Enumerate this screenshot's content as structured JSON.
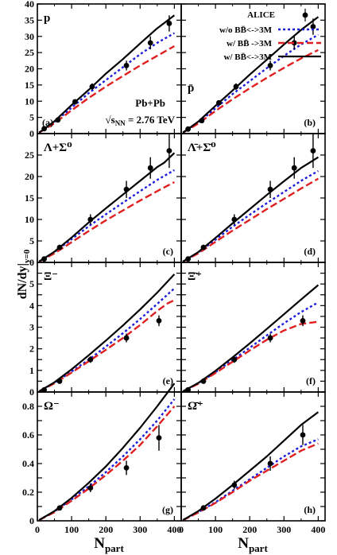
{
  "figure": {
    "y_label_main": "dN/dy|",
    "y_label_sub": "y=0",
    "x_label_main": "N",
    "x_label_sub": "part",
    "system_label": "Pb+Pb",
    "energy_prefix": "√s",
    "energy_sub": "NN",
    "energy_suffix": " = 2.76 TeV"
  },
  "legend": {
    "placement": "top-right of panel (b)",
    "entries": [
      {
        "label": "ALICE",
        "style": "marker"
      },
      {
        "label": "w/o BB̄<->3M",
        "style": "blue-dotted"
      },
      {
        "label": "w/  BB̄ ->3M",
        "style": "red-dashed"
      },
      {
        "label": "w/  BB̄<->3M",
        "style": "black-solid"
      }
    ]
  },
  "colors": {
    "blue": "#1c1cdd",
    "red": "#e02020",
    "black": "#000000"
  },
  "chart_data": [
    {
      "type": "line",
      "panel": "(a)",
      "particle": "p",
      "xlim": [
        0,
        420
      ],
      "ylim": [
        0,
        40
      ],
      "x_ticks": [
        0,
        100,
        200,
        300,
        400
      ],
      "y_ticks": [
        0,
        5,
        10,
        15,
        20,
        25,
        30,
        35,
        40
      ],
      "x_ticklabels": [
        "0",
        "100",
        "200",
        "300",
        "400"
      ],
      "y_ticklabels": [
        "0",
        "5",
        "10",
        "15",
        "20",
        "25",
        "30",
        "35",
        "40"
      ],
      "alice": {
        "x": [
          20,
          60,
          110,
          160,
          260,
          330,
          385
        ],
        "y": [
          1.5,
          4.2,
          9.8,
          14.5,
          21,
          28,
          34
        ],
        "err": [
          0.3,
          0.5,
          0.8,
          1.0,
          1.5,
          2.0,
          2.5
        ]
      },
      "series": [
        {
          "style": "blue-dotted",
          "x": [
            5,
            50,
            100,
            150,
            200,
            250,
            300,
            350,
            400
          ],
          "y": [
            0.3,
            3.5,
            8,
            12.5,
            16.5,
            20.5,
            24.5,
            28,
            31
          ]
        },
        {
          "style": "red-dashed",
          "x": [
            5,
            50,
            100,
            150,
            200,
            250,
            300,
            350,
            400
          ],
          "y": [
            0.3,
            3.2,
            7.2,
            11,
            14.5,
            17.8,
            21,
            24,
            27
          ]
        },
        {
          "style": "black-solid",
          "x": [
            5,
            50,
            100,
            150,
            200,
            250,
            300,
            350,
            400
          ],
          "y": [
            0.3,
            3.8,
            8.8,
            13.5,
            18.5,
            23,
            27.8,
            32.5,
            36.5
          ]
        }
      ]
    },
    {
      "type": "line",
      "panel": "(b)",
      "particle": "p̄",
      "xlim": [
        0,
        420
      ],
      "ylim": [
        0,
        40
      ],
      "x_ticks": [
        0,
        100,
        200,
        300,
        400
      ],
      "y_ticks": [
        0,
        5,
        10,
        15,
        20,
        25,
        30,
        35,
        40
      ],
      "x_ticklabels": [
        "0",
        "100",
        "200",
        "300",
        "400"
      ],
      "y_ticklabels": [],
      "alice": {
        "x": [
          20,
          60,
          110,
          160,
          260,
          330,
          385
        ],
        "y": [
          1.4,
          4.0,
          9.5,
          14.5,
          21,
          28,
          33
        ],
        "err": [
          0.3,
          0.5,
          0.8,
          1.0,
          1.5,
          2.0,
          2.5
        ]
      },
      "series": [
        {
          "style": "blue-dotted",
          "x": [
            5,
            50,
            100,
            150,
            200,
            250,
            300,
            350,
            400
          ],
          "y": [
            0.3,
            3.4,
            7.8,
            12.2,
            16.2,
            20.2,
            24,
            27.5,
            30.5
          ]
        },
        {
          "style": "red-dashed",
          "x": [
            5,
            50,
            100,
            150,
            200,
            250,
            300,
            350,
            400
          ],
          "y": [
            0.3,
            3.1,
            7,
            10.6,
            14,
            17.2,
            20.3,
            23.2,
            25.8
          ]
        },
        {
          "style": "black-solid",
          "x": [
            5,
            50,
            100,
            150,
            200,
            250,
            300,
            350,
            400
          ],
          "y": [
            0.3,
            3.7,
            8.6,
            13.3,
            18.2,
            22.8,
            27.5,
            32,
            36
          ]
        }
      ]
    },
    {
      "type": "line",
      "panel": "(c)",
      "particle": "Λ+Σ⁰",
      "xlim": [
        0,
        420
      ],
      "ylim": [
        0,
        30
      ],
      "x_ticks": [
        0,
        100,
        200,
        300,
        400
      ],
      "y_ticks": [
        0,
        5,
        10,
        15,
        20,
        25,
        30
      ],
      "x_ticklabels": [
        "0",
        "100",
        "200",
        "300",
        "400"
      ],
      "y_ticklabels": [
        "0",
        "5",
        "10",
        "15",
        "20",
        "25"
      ],
      "alice": {
        "x": [
          20,
          65,
          155,
          260,
          330,
          385
        ],
        "y": [
          0.8,
          3.5,
          10,
          17,
          22,
          26
        ],
        "err": [
          0.3,
          0.6,
          1.2,
          2.0,
          2.5,
          4.0
        ]
      },
      "series": [
        {
          "style": "blue-dotted",
          "x": [
            5,
            50,
            100,
            150,
            200,
            250,
            300,
            350,
            400
          ],
          "y": [
            0.2,
            2.4,
            5.4,
            8.4,
            11.2,
            13.9,
            16.6,
            19.2,
            21.5
          ]
        },
        {
          "style": "red-dashed",
          "x": [
            5,
            50,
            100,
            150,
            200,
            250,
            300,
            350,
            400
          ],
          "y": [
            0.2,
            2.1,
            4.7,
            7.3,
            9.8,
            12.1,
            14.4,
            16.6,
            18.7
          ]
        },
        {
          "style": "black-solid",
          "x": [
            5,
            50,
            100,
            150,
            200,
            250,
            300,
            350,
            370,
            400
          ],
          "y": [
            0.2,
            2.5,
            5.8,
            9.3,
            12.6,
            15.8,
            19,
            22.2,
            23.2,
            25.5
          ]
        }
      ]
    },
    {
      "type": "line",
      "panel": "(d)",
      "particle": "Λ̄+Σ̄⁰",
      "xlim": [
        0,
        420
      ],
      "ylim": [
        0,
        30
      ],
      "x_ticks": [
        0,
        100,
        200,
        300,
        400
      ],
      "y_ticks": [
        0,
        5,
        10,
        15,
        20,
        25,
        30
      ],
      "x_ticklabels": [
        "0",
        "100",
        "200",
        "300",
        "400"
      ],
      "y_ticklabels": [],
      "alice": {
        "x": [
          20,
          65,
          155,
          260,
          330,
          385
        ],
        "y": [
          0.8,
          3.5,
          10,
          17,
          22,
          26
        ],
        "err": [
          0.3,
          0.6,
          1.2,
          2.0,
          2.5,
          4.0
        ]
      },
      "series": [
        {
          "style": "blue-dotted",
          "x": [
            5,
            50,
            100,
            150,
            200,
            250,
            300,
            350,
            400
          ],
          "y": [
            0.2,
            2.3,
            5.3,
            8.3,
            11.1,
            13.8,
            16.4,
            19,
            21.3
          ]
        },
        {
          "style": "red-dashed",
          "x": [
            5,
            50,
            100,
            150,
            200,
            250,
            300,
            350,
            400
          ],
          "y": [
            0.2,
            2.1,
            4.8,
            7.4,
            9.9,
            12.4,
            14.8,
            17.2,
            19.5
          ]
        },
        {
          "style": "black-solid",
          "x": [
            5,
            50,
            100,
            150,
            200,
            250,
            300,
            350,
            370,
            400
          ],
          "y": [
            0.2,
            2.4,
            5.7,
            9.1,
            12.4,
            15.7,
            18.9,
            22,
            23,
            24.5
          ]
        }
      ]
    },
    {
      "type": "line",
      "panel": "(e)",
      "particle": "Ξ⁻",
      "xlim": [
        0,
        420
      ],
      "ylim": [
        0,
        6
      ],
      "x_ticks": [
        0,
        100,
        200,
        300,
        400
      ],
      "y_ticks": [
        0,
        0.5,
        1,
        1.5,
        2,
        2.5,
        3,
        3.5,
        4,
        4.5,
        5,
        5.5,
        6
      ],
      "x_ticklabels": [
        "0",
        "100",
        "200",
        "300",
        "400"
      ],
      "y_ticklabels": [
        "0",
        "",
        "1",
        "",
        "2",
        "",
        "3",
        "",
        "4",
        "",
        "5",
        "",
        ""
      ],
      "alice": {
        "x": [
          20,
          65,
          155,
          260,
          355
        ],
        "y": [
          0.1,
          0.5,
          1.5,
          2.5,
          3.3
        ],
        "err": [
          0.03,
          0.08,
          0.15,
          0.2,
          0.25
        ]
      },
      "series": [
        {
          "style": "blue-dotted",
          "x": [
            5,
            50,
            100,
            150,
            200,
            250,
            300,
            350,
            400
          ],
          "y": [
            0.03,
            0.42,
            0.95,
            1.5,
            2.1,
            2.72,
            3.38,
            4.08,
            4.8
          ]
        },
        {
          "style": "red-dashed",
          "x": [
            5,
            50,
            100,
            150,
            200,
            250,
            300,
            350,
            380,
            400
          ],
          "y": [
            0.03,
            0.4,
            0.9,
            1.42,
            1.95,
            2.5,
            3.1,
            3.75,
            4.1,
            4.25
          ]
        },
        {
          "style": "black-solid",
          "x": [
            5,
            50,
            100,
            150,
            200,
            250,
            300,
            350,
            400
          ],
          "y": [
            0.03,
            0.45,
            1.05,
            1.7,
            2.38,
            3.08,
            3.82,
            4.6,
            5.45
          ]
        }
      ]
    },
    {
      "type": "line",
      "panel": "(f)",
      "particle": "Ξ̄⁺",
      "xlim": [
        0,
        420
      ],
      "ylim": [
        0,
        6
      ],
      "x_ticks": [
        0,
        100,
        200,
        300,
        400
      ],
      "y_ticks": [
        0,
        0.5,
        1,
        1.5,
        2,
        2.5,
        3,
        3.5,
        4,
        4.5,
        5,
        5.5,
        6
      ],
      "x_ticklabels": [
        "0",
        "100",
        "200",
        "300",
        "400"
      ],
      "y_ticklabels": [],
      "alice": {
        "x": [
          20,
          65,
          155,
          260,
          355
        ],
        "y": [
          0.1,
          0.5,
          1.5,
          2.5,
          3.3
        ],
        "err": [
          0.03,
          0.08,
          0.15,
          0.2,
          0.25
        ]
      },
      "series": [
        {
          "style": "blue-dotted",
          "x": [
            5,
            50,
            100,
            150,
            200,
            250,
            300,
            350,
            400
          ],
          "y": [
            0.03,
            0.4,
            0.92,
            1.48,
            2.05,
            2.62,
            3.18,
            3.7,
            4.15
          ]
        },
        {
          "style": "red-dashed",
          "x": [
            5,
            50,
            100,
            150,
            200,
            250,
            300,
            350,
            400
          ],
          "y": [
            0.03,
            0.38,
            0.88,
            1.4,
            1.92,
            2.42,
            2.85,
            3.15,
            3.25
          ]
        },
        {
          "style": "black-solid",
          "x": [
            5,
            50,
            100,
            150,
            200,
            250,
            300,
            350,
            400
          ],
          "y": [
            0.03,
            0.42,
            0.98,
            1.6,
            2.25,
            2.92,
            3.6,
            4.28,
            4.95
          ]
        }
      ]
    },
    {
      "type": "line",
      "panel": "(g)",
      "particle": "Ω⁻",
      "xlim": [
        0,
        420
      ],
      "ylim": [
        0,
        0.9
      ],
      "x_ticks": [
        0,
        100,
        200,
        300,
        400
      ],
      "y_ticks": [
        0,
        0.1,
        0.2,
        0.3,
        0.4,
        0.5,
        0.6,
        0.7,
        0.8,
        0.9
      ],
      "x_ticklabels": [
        "0",
        "100",
        "200",
        "300",
        "400"
      ],
      "y_ticklabels": [
        "0",
        "",
        "0.2",
        "",
        "0.4",
        "",
        "0.6",
        "",
        "0.8",
        ""
      ],
      "alice": {
        "x": [
          65,
          155,
          260,
          355
        ],
        "y": [
          0.09,
          0.23,
          0.37,
          0.58
        ],
        "err": [
          0.01,
          0.03,
          0.05,
          0.09
        ]
      },
      "series": [
        {
          "style": "blue-dotted",
          "x": [
            5,
            50,
            100,
            150,
            200,
            250,
            300,
            350,
            400
          ],
          "y": [
            0.005,
            0.065,
            0.15,
            0.24,
            0.34,
            0.45,
            0.57,
            0.7,
            0.85
          ]
        },
        {
          "style": "red-dashed",
          "x": [
            5,
            50,
            100,
            150,
            200,
            250,
            300,
            350,
            400
          ],
          "y": [
            0.005,
            0.06,
            0.14,
            0.225,
            0.32,
            0.42,
            0.53,
            0.66,
            0.8
          ]
        },
        {
          "style": "black-solid",
          "x": [
            5,
            50,
            100,
            150,
            200,
            250,
            300,
            350,
            400
          ],
          "y": [
            0.005,
            0.068,
            0.16,
            0.265,
            0.38,
            0.51,
            0.65,
            0.8,
            0.96
          ]
        }
      ]
    },
    {
      "type": "line",
      "panel": "(h)",
      "particle": "Ω̄⁺",
      "xlim": [
        0,
        420
      ],
      "ylim": [
        0,
        0.9
      ],
      "x_ticks": [
        0,
        100,
        200,
        300,
        400
      ],
      "y_ticks": [
        0,
        0.1,
        0.2,
        0.3,
        0.4,
        0.5,
        0.6,
        0.7,
        0.8,
        0.9
      ],
      "x_ticklabels": [
        "0",
        "100",
        "200",
        "300",
        "400"
      ],
      "y_ticklabels": [],
      "alice": {
        "x": [
          65,
          155,
          260,
          355
        ],
        "y": [
          0.09,
          0.25,
          0.4,
          0.6
        ],
        "err": [
          0.01,
          0.03,
          0.05,
          0.07
        ]
      },
      "series": [
        {
          "style": "blue-dotted",
          "x": [
            5,
            50,
            100,
            150,
            200,
            250,
            300,
            350,
            400
          ],
          "y": [
            0.005,
            0.06,
            0.13,
            0.21,
            0.29,
            0.37,
            0.45,
            0.52,
            0.57
          ]
        },
        {
          "style": "red-dashed",
          "x": [
            5,
            50,
            100,
            150,
            200,
            250,
            300,
            350,
            400
          ],
          "y": [
            0.005,
            0.058,
            0.125,
            0.2,
            0.28,
            0.35,
            0.42,
            0.49,
            0.54
          ]
        },
        {
          "style": "black-solid",
          "x": [
            5,
            50,
            100,
            150,
            200,
            250,
            300,
            350,
            400
          ],
          "y": [
            0.005,
            0.068,
            0.155,
            0.25,
            0.35,
            0.45,
            0.56,
            0.67,
            0.76
          ]
        }
      ]
    }
  ]
}
